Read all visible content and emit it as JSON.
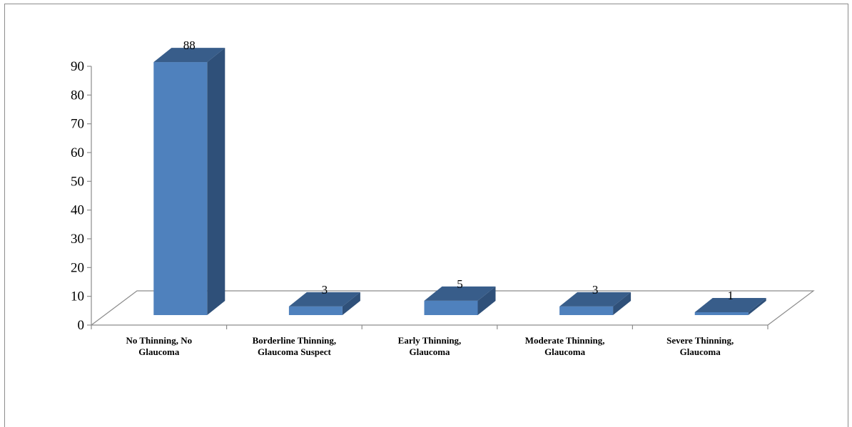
{
  "chart_data": {
    "type": "bar",
    "style": "3d-column",
    "categories": [
      [
        "No Thinning, No",
        "Glaucoma"
      ],
      [
        "Borderline Thinning,",
        "Glaucoma Suspect"
      ],
      [
        "Early Thinning,",
        "Glaucoma"
      ],
      [
        "Moderate Thinning,",
        "Glaucoma"
      ],
      [
        "Severe Thinning,",
        "Glaucoma"
      ]
    ],
    "values": [
      88,
      3,
      5,
      3,
      1
    ],
    "data_labels": [
      "88",
      "3",
      "5",
      "3",
      "1"
    ],
    "ylim": [
      0,
      90
    ],
    "yticks": [
      0,
      10,
      20,
      30,
      40,
      50,
      60,
      70,
      80,
      90
    ],
    "title": "",
    "xlabel": "",
    "ylabel": "",
    "legend": "none",
    "grid": false,
    "colors": {
      "bar_front": "#4f81bd",
      "bar_side": "#2f5079",
      "bar_top": "#385d8a",
      "axis": "#8c8c8c"
    }
  }
}
